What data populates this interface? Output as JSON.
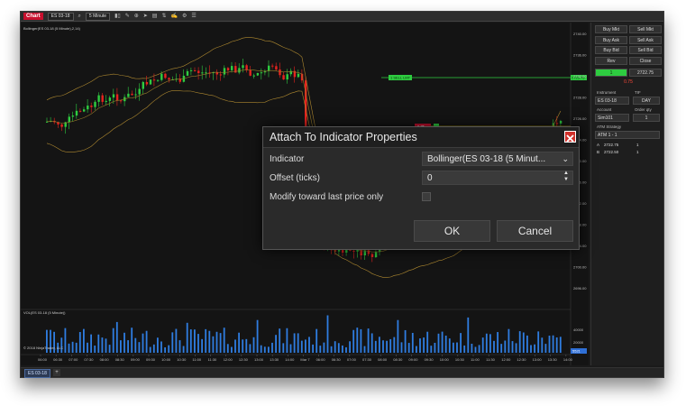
{
  "toolbar": {
    "chart_tag": "Chart",
    "instrument": "ES 03-18",
    "interval": "5 Minute"
  },
  "chart": {
    "indicator_label": "Bollinger(ES 03-18 (5 Minute),2,14)",
    "volume_label": "VOL(ES 03-18 (5 Minute))",
    "copyright": "© 2018 NinjaTrader, LLC",
    "order_buy_label": "1 SELL LMT",
    "order_buy_price": "2725.75",
    "order_sell_label": "0.75",
    "price_axis": [
      "2740.00",
      "2736.00",
      "2732.00",
      "2728.00",
      "2726.00",
      "2724.00",
      "2720.00",
      "2716.00",
      "2712.00",
      "2708.00",
      "2704.00",
      "2700.00",
      "2696.00"
    ],
    "volume_axis": [
      "40000",
      "20000"
    ],
    "volume_badge": "5521",
    "time_axis": [
      "06:00",
      "06:30",
      "07:00",
      "07:30",
      "08:00",
      "08:30",
      "09:00",
      "09:30",
      "10:00",
      "10:30",
      "11:00",
      "11:30",
      "12:00",
      "12:30",
      "13:00",
      "13:30",
      "14:00",
      "Mar 7",
      "06:00",
      "06:30",
      "07:00",
      "07:30",
      "08:00",
      "08:30",
      "09:00",
      "09:30",
      "10:00",
      "10:30",
      "11:00",
      "11:30",
      "12:00",
      "12:30",
      "13:00",
      "13:30",
      "14:00"
    ]
  },
  "right_panel": {
    "buttons": [
      "Buy Mkt",
      "Sell Mkt",
      "Buy Ask",
      "Sell Ask",
      "Buy Bid",
      "Sell Bid",
      "Rev",
      "Close"
    ],
    "price_green": "1",
    "price_value": "2722.75",
    "pnl": "0.75",
    "instrument_label": "Instrument",
    "tif_label": "TIF",
    "instrument_value": "ES 03-18",
    "tif_value": "DAY",
    "account_label": "Account",
    "order_qty_label": "Order qty",
    "account_value": "Sim101",
    "order_qty_value": "1",
    "atm_label": "ATM Strategy",
    "atm_value": "ATM 1 - 1",
    "pos_rows": [
      {
        "side": "A",
        "price": "2722.75",
        "qty": "1"
      },
      {
        "side": "B",
        "price": "2722.50",
        "qty": "1"
      }
    ]
  },
  "tabs": [
    "ES 03-18"
  ],
  "dialog": {
    "title": "Attach To Indicator Properties",
    "indicator_label": "Indicator",
    "indicator_value": "Bollinger(ES 03-18 (5 Minut...",
    "offset_label": "Offset (ticks)",
    "offset_value": "0",
    "modify_label": "Modify toward last price only",
    "ok_label": "OK",
    "cancel_label": "Cancel"
  }
}
